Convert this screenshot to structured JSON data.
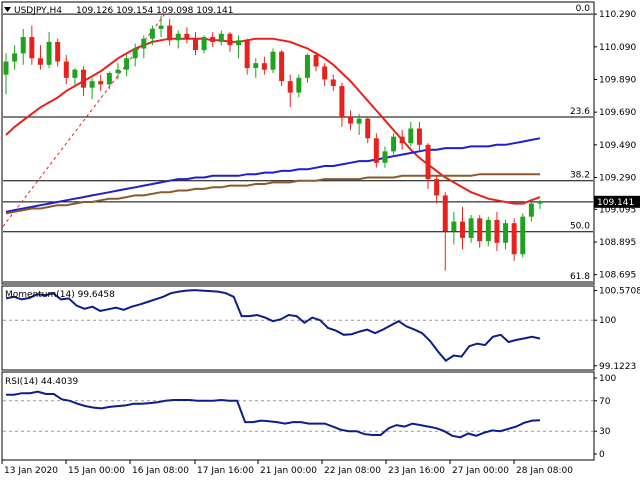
{
  "header": {
    "symbol_tf": "USDJPY,H4",
    "ohlc": "109.126 109.154 109.098 109.141",
    "marker_icon": "triangle-down-icon"
  },
  "colors": {
    "ema_red": "#e8211c",
    "ma_blue": "#1f1fd0",
    "ma_brown": "#8b5a2b",
    "bull": "#1fa31f",
    "bear": "#e8211c",
    "line_black": "#000000",
    "indicator": "#0a1e8c"
  },
  "fib": {
    "levels": [
      {
        "label": "0.0",
        "price": 110.29
      },
      {
        "label": "23.6",
        "price": 109.66
      },
      {
        "label": "38.2",
        "price": 109.27
      },
      {
        "label": "50.0",
        "price": 108.958
      },
      {
        "label": "61.8",
        "price": 108.65
      }
    ],
    "extra_line_price": 109.141
  },
  "price_panel": {
    "ticks": [
      "110.290",
      "110.090",
      "109.890",
      "109.690",
      "109.490",
      "109.290",
      "109.095",
      "108.895",
      "108.695"
    ],
    "current_price": "109.141",
    "ymin": 108.65,
    "ymax": 110.34
  },
  "momentum": {
    "title": "Momentum(14) 99.6458",
    "ticks": [
      "100.5708",
      "100",
      "99.1223"
    ],
    "ymin": 99.08,
    "ymax": 100.62
  },
  "rsi": {
    "title": "RSI(14) 44.4039",
    "ticks": [
      "100",
      "70",
      "30",
      "0"
    ],
    "ymin": 0,
    "ymax": 100
  },
  "time_axis": {
    "labels": [
      "13 Jan 2020",
      "15 Jan 00:00",
      "16 Jan 08:00",
      "17 Jan 16:00",
      "21 Jan 00:00",
      "22 Jan 08:00",
      "23 Jan 16:00",
      "27 Jan 00:00",
      "28 Jan 08:00"
    ]
  },
  "chart_data": {
    "type": "candlestick",
    "title": "USDJPY,H4",
    "candles": [
      [
        109.92,
        110.05,
        109.8,
        110.0
      ],
      [
        110.0,
        110.1,
        109.95,
        110.05
      ],
      [
        110.05,
        110.2,
        109.98,
        110.15
      ],
      [
        110.15,
        110.22,
        109.98,
        110.02
      ],
      [
        110.02,
        110.1,
        109.95,
        109.98
      ],
      [
        109.98,
        110.18,
        109.96,
        110.12
      ],
      [
        110.12,
        110.14,
        109.97,
        110.0
      ],
      [
        110.0,
        110.04,
        109.86,
        109.9
      ],
      [
        109.9,
        109.96,
        109.84,
        109.95
      ],
      [
        109.95,
        109.97,
        109.79,
        109.84
      ],
      [
        109.84,
        109.9,
        109.77,
        109.88
      ],
      [
        109.88,
        109.92,
        109.82,
        109.86
      ],
      [
        109.86,
        109.94,
        109.83,
        109.93
      ],
      [
        109.93,
        109.99,
        109.89,
        109.95
      ],
      [
        109.95,
        110.04,
        109.91,
        110.02
      ],
      [
        110.02,
        110.11,
        109.97,
        110.08
      ],
      [
        110.08,
        110.16,
        110.02,
        110.14
      ],
      [
        110.14,
        110.22,
        110.1,
        110.2
      ],
      [
        110.2,
        110.28,
        110.15,
        110.22
      ],
      [
        110.22,
        110.26,
        110.1,
        110.13
      ],
      [
        110.13,
        110.19,
        110.08,
        110.17
      ],
      [
        110.17,
        110.21,
        110.11,
        110.14
      ],
      [
        110.14,
        110.18,
        110.04,
        110.07
      ],
      [
        110.07,
        110.16,
        110.05,
        110.15
      ],
      [
        110.15,
        110.18,
        110.09,
        110.12
      ],
      [
        110.12,
        110.19,
        110.1,
        110.17
      ],
      [
        110.17,
        110.18,
        110.06,
        110.1
      ],
      [
        110.1,
        110.16,
        110.02,
        110.13
      ],
      [
        110.13,
        110.14,
        109.92,
        109.96
      ],
      [
        109.96,
        110.02,
        109.9,
        109.99
      ],
      [
        109.99,
        110.03,
        109.92,
        109.95
      ],
      [
        109.95,
        110.08,
        109.93,
        110.06
      ],
      [
        110.06,
        110.07,
        109.85,
        109.88
      ],
      [
        109.88,
        109.92,
        109.72,
        109.81
      ],
      [
        109.81,
        109.92,
        109.78,
        109.9
      ],
      [
        109.9,
        110.05,
        109.87,
        110.04
      ],
      [
        110.04,
        110.06,
        109.94,
        109.97
      ],
      [
        109.97,
        109.99,
        109.85,
        109.89
      ],
      [
        109.89,
        109.92,
        109.82,
        109.85
      ],
      [
        109.85,
        109.87,
        109.6,
        109.66
      ],
      [
        109.66,
        109.7,
        109.58,
        109.62
      ],
      [
        109.62,
        109.68,
        109.55,
        109.65
      ],
      [
        109.65,
        109.66,
        109.5,
        109.53
      ],
      [
        109.53,
        109.56,
        109.35,
        109.38
      ],
      [
        109.38,
        109.48,
        109.35,
        109.45
      ],
      [
        109.45,
        109.56,
        109.43,
        109.54
      ],
      [
        109.54,
        109.58,
        109.46,
        109.5
      ],
      [
        109.5,
        109.63,
        109.48,
        109.59
      ],
      [
        109.59,
        109.63,
        109.45,
        109.49
      ],
      [
        109.49,
        109.5,
        109.22,
        109.28
      ],
      [
        109.28,
        109.3,
        109.13,
        109.18
      ],
      [
        109.18,
        109.2,
        108.72,
        108.96
      ],
      [
        108.96,
        109.08,
        108.88,
        109.02
      ],
      [
        109.02,
        109.11,
        108.85,
        108.92
      ],
      [
        108.92,
        109.06,
        108.89,
        109.04
      ],
      [
        109.04,
        109.06,
        108.86,
        108.9
      ],
      [
        108.9,
        109.05,
        108.87,
        109.03
      ],
      [
        109.03,
        109.08,
        108.84,
        108.89
      ],
      [
        108.89,
        109.03,
        108.85,
        109.01
      ],
      [
        109.01,
        109.04,
        108.78,
        108.82
      ],
      [
        108.82,
        109.07,
        108.8,
        109.05
      ],
      [
        109.05,
        109.16,
        109.02,
        109.13
      ],
      [
        109.13,
        109.154,
        109.098,
        109.141
      ]
    ],
    "series": [
      {
        "name": "",
        "values": [
          109.55,
          109.6,
          109.64,
          109.68,
          109.72,
          109.75,
          109.78,
          109.82,
          109.85,
          109.88,
          109.91,
          109.94,
          109.98,
          110.02,
          110.05,
          110.08,
          110.1,
          110.12,
          110.13,
          110.14,
          110.14,
          110.14,
          110.14,
          110.14,
          110.13,
          110.13,
          110.12,
          110.12,
          110.13,
          110.14,
          110.14,
          110.14,
          110.13,
          110.12,
          110.1,
          110.08,
          110.05,
          110.02,
          109.98,
          109.93,
          109.88,
          109.82,
          109.76,
          109.7,
          109.64,
          109.58,
          109.52,
          109.46,
          109.41,
          109.37,
          109.33,
          109.29,
          109.26,
          109.23,
          109.2,
          109.18,
          109.16,
          109.15,
          109.14,
          109.13,
          109.13,
          109.15,
          109.17
        ]
      },
      {
        "name": "",
        "values": [
          109.08,
          109.09,
          109.1,
          109.11,
          109.12,
          109.13,
          109.14,
          109.15,
          109.16,
          109.17,
          109.18,
          109.19,
          109.2,
          109.21,
          109.22,
          109.23,
          109.24,
          109.25,
          109.26,
          109.27,
          109.28,
          109.28,
          109.29,
          109.29,
          109.3,
          109.3,
          109.3,
          109.3,
          109.31,
          109.31,
          109.32,
          109.32,
          109.33,
          109.33,
          109.34,
          109.34,
          109.35,
          109.36,
          109.36,
          109.37,
          109.38,
          109.39,
          109.39,
          109.4,
          109.41,
          109.42,
          109.43,
          109.44,
          109.45,
          109.46,
          109.46,
          109.47,
          109.47,
          109.47,
          109.48,
          109.48,
          109.48,
          109.49,
          109.49,
          109.5,
          109.51,
          109.52,
          109.53
        ]
      },
      {
        "name": "",
        "values": [
          109.07,
          109.08,
          109.09,
          109.1,
          109.1,
          109.11,
          109.12,
          109.12,
          109.13,
          109.14,
          109.14,
          109.15,
          109.16,
          109.16,
          109.17,
          109.18,
          109.18,
          109.19,
          109.2,
          109.2,
          109.21,
          109.21,
          109.22,
          109.22,
          109.23,
          109.23,
          109.24,
          109.24,
          109.24,
          109.25,
          109.25,
          109.26,
          109.26,
          109.26,
          109.27,
          109.27,
          109.27,
          109.28,
          109.28,
          109.28,
          109.28,
          109.28,
          109.29,
          109.29,
          109.29,
          109.29,
          109.3,
          109.3,
          109.3,
          109.3,
          109.3,
          109.3,
          109.3,
          109.3,
          109.3,
          109.31,
          109.31,
          109.31,
          109.31,
          109.31,
          109.31,
          109.31,
          109.31
        ]
      }
    ],
    "momentum_values": [
      100.42,
      100.45,
      100.4,
      100.43,
      100.5,
      100.48,
      100.52,
      100.4,
      100.42,
      100.28,
      100.22,
      100.26,
      100.18,
      100.21,
      100.24,
      100.2,
      100.26,
      100.3,
      100.35,
      100.4,
      100.45,
      100.52,
      100.55,
      100.57,
      100.58,
      100.57,
      100.56,
      100.55,
      100.52,
      100.45,
      100.08,
      100.08,
      100.1,
      100.05,
      99.98,
      100.02,
      100.1,
      100.08,
      99.95,
      100.05,
      100.0,
      99.85,
      99.8,
      99.72,
      99.73,
      99.78,
      99.82,
      99.75,
      99.82,
      99.9,
      99.98,
      99.88,
      99.82,
      99.75,
      99.6,
      99.4,
      99.22,
      99.32,
      99.3,
      99.5,
      99.55,
      99.52,
      99.68,
      99.72,
      99.58,
      99.62,
      99.65,
      99.68,
      99.6458
    ],
    "rsi_values": [
      78,
      78,
      80,
      80,
      82,
      79,
      79,
      72,
      70,
      66,
      63,
      61,
      60,
      62,
      63,
      64,
      66,
      66,
      67,
      68,
      70,
      71,
      71,
      71,
      70,
      70,
      70,
      71,
      70,
      70,
      42,
      42,
      44,
      43,
      42,
      40,
      42,
      42,
      40,
      40,
      40,
      36,
      32,
      30,
      30,
      26,
      25,
      25,
      34,
      38,
      36,
      40,
      38,
      36,
      34,
      30,
      24,
      22,
      27,
      24,
      28,
      31,
      30,
      33,
      36,
      41,
      44,
      44.4039
    ],
    "ylim": [
      108.65,
      110.34
    ]
  }
}
